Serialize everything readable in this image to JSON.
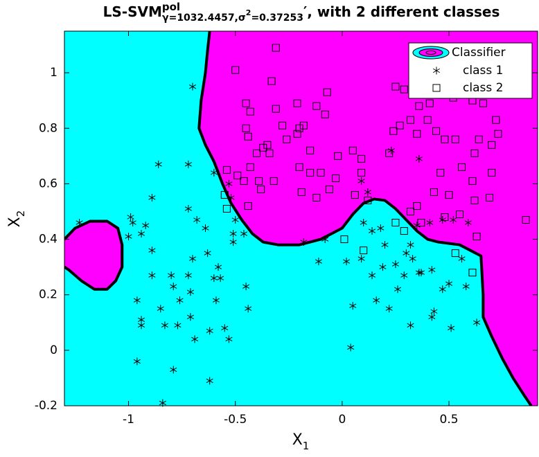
{
  "chart_data": {
    "type": "scatter",
    "title": {
      "main": "LS-SVM",
      "sup": "pol",
      "sub": "γ=1032.4457,σ",
      "sub_sup": "2",
      "sub_end": "=0.37253",
      "rest": "′, with 2 different classes"
    },
    "xlabel": {
      "text": "X",
      "sub": "1"
    },
    "ylabel": {
      "text": "X",
      "sub": "2"
    },
    "xlim": [
      -1.3,
      0.915
    ],
    "ylim": [
      -0.2,
      1.15
    ],
    "xticks": [
      -1,
      -0.5,
      0,
      0.5
    ],
    "yticks": [
      -0.2,
      0,
      0.2,
      0.4,
      0.6,
      0.8,
      1
    ],
    "legend_position": "top-right",
    "classifier": {
      "name": "Classifier",
      "colors": [
        "#00ffff",
        "#ff00ff"
      ],
      "boundaries": [
        {
          "x": [
            -0.62,
            -0.63,
            -0.64,
            -0.66,
            -0.67,
            -0.64,
            -0.6,
            -0.56,
            -0.52,
            -0.47,
            -0.42,
            -0.37,
            -0.3,
            -0.2,
            -0.1,
            0,
            0.05,
            0.1,
            0.15,
            0.2,
            0.25,
            0.3,
            0.35,
            0.4,
            0.45,
            0.55,
            0.6,
            0.65,
            0.66,
            0.66,
            0.7,
            0.75,
            0.8,
            0.85,
            0.885
          ],
          "y": [
            1.15,
            1.08,
            1.0,
            0.9,
            0.8,
            0.74,
            0.68,
            0.6,
            0.53,
            0.47,
            0.42,
            0.39,
            0.38,
            0.38,
            0.4,
            0.44,
            0.49,
            0.53,
            0.545,
            0.54,
            0.51,
            0.47,
            0.43,
            0.4,
            0.39,
            0.38,
            0.36,
            0.34,
            0.2,
            0.12,
            0.05,
            -0.03,
            -0.1,
            -0.16,
            -0.2
          ]
        },
        {
          "x": [
            -1.3,
            -1.25,
            -1.18,
            -1.1,
            -1.05,
            -1.03,
            -1.03,
            -1.06,
            -1.1,
            -1.16,
            -1.22,
            -1.28,
            -1.3
          ],
          "y": [
            0.4,
            0.44,
            0.465,
            0.465,
            0.44,
            0.38,
            0.3,
            0.25,
            0.22,
            0.22,
            0.25,
            0.29,
            0.3
          ]
        }
      ]
    },
    "series": [
      {
        "name": "class 1",
        "marker": "asterisk",
        "color": "#000000",
        "x": [
          -1.23,
          -0.99,
          -0.98,
          -1.0,
          -0.94,
          -0.92,
          -0.89,
          -0.89,
          -0.86,
          -0.96,
          -0.94,
          -0.94,
          -0.96,
          -0.89,
          -0.85,
          -0.83,
          -0.84,
          -0.8,
          -0.79,
          -0.76,
          -0.77,
          -0.79,
          -0.72,
          -0.71,
          -0.7,
          -0.71,
          -0.69,
          -0.62,
          -0.62,
          -0.72,
          -0.72,
          -0.68,
          -0.64,
          -0.63,
          -0.6,
          -0.58,
          -0.59,
          -0.57,
          -0.53,
          -0.51,
          -0.5,
          -0.51,
          -0.46,
          -0.45,
          -0.44,
          -0.55,
          -0.7,
          -0.6,
          -0.52,
          -0.53,
          -0.18,
          -0.11,
          -0.08,
          0.02,
          0.05,
          0.04,
          0.09,
          0.09,
          0.12,
          0.1,
          0.14,
          0.18,
          0.2,
          0.19,
          0.14,
          0.16,
          0.22,
          0.25,
          0.26,
          0.29,
          0.3,
          0.32,
          0.33,
          0.35,
          0.36,
          0.37,
          0.42,
          0.43,
          0.42,
          0.47,
          0.5,
          0.51,
          0.56,
          0.58,
          0.63,
          0.32,
          0.23,
          0.36,
          0.41,
          0.47,
          0.52,
          0.59
        ],
        "values": [
          0.46,
          0.48,
          0.46,
          0.41,
          0.42,
          0.45,
          0.36,
          0.55,
          0.67,
          0.18,
          0.11,
          0.09,
          -0.04,
          0.27,
          0.15,
          0.09,
          -0.19,
          0.27,
          0.23,
          0.18,
          0.09,
          -0.07,
          0.27,
          0.21,
          0.33,
          0.12,
          0.04,
          0.07,
          -0.11,
          0.67,
          0.51,
          0.47,
          0.44,
          0.35,
          0.26,
          0.3,
          0.18,
          0.26,
          0.04,
          0.39,
          0.47,
          0.42,
          0.42,
          0.23,
          0.15,
          0.08,
          0.95,
          0.64,
          0.55,
          0.6,
          0.39,
          0.32,
          0.4,
          0.32,
          0.16,
          0.01,
          0.33,
          0.61,
          0.57,
          0.46,
          0.43,
          0.44,
          0.38,
          0.3,
          0.27,
          0.18,
          0.15,
          0.31,
          0.22,
          0.27,
          0.35,
          0.38,
          0.33,
          0.45,
          0.28,
          0.28,
          0.29,
          0.14,
          0.12,
          0.22,
          0.24,
          0.08,
          0.33,
          0.23,
          0.1,
          0.09,
          0.72,
          0.69,
          0.46,
          0.47,
          0.47,
          0.46
        ]
      },
      {
        "name": "class 2",
        "marker": "square",
        "color": "#000000",
        "x": [
          -0.31,
          -0.33,
          -0.5,
          -0.45,
          -0.43,
          -0.31,
          -0.44,
          -0.45,
          -0.4,
          -0.37,
          -0.35,
          -0.34,
          -0.43,
          -0.39,
          -0.46,
          -0.49,
          -0.54,
          -0.55,
          -0.54,
          -0.44,
          -0.38,
          -0.32,
          -0.28,
          -0.26,
          -0.21,
          -0.2,
          -0.21,
          -0.18,
          -0.15,
          -0.12,
          -0.08,
          -0.07,
          -0.1,
          -0.15,
          -0.2,
          -0.19,
          -0.12,
          -0.06,
          -0.03,
          -0.02,
          0.05,
          0.09,
          0.09,
          0.06,
          0.1,
          0.01,
          0.22,
          0.24,
          0.29,
          0.32,
          0.27,
          0.35,
          0.4,
          0.44,
          0.48,
          0.53,
          0.56,
          0.62,
          0.64,
          0.7,
          0.73,
          0.61,
          0.66,
          0.72,
          0.47,
          0.52,
          0.41,
          0.36,
          0.25,
          0.61,
          0.7,
          0.62,
          0.5,
          0.46,
          0.43,
          0.35,
          0.37,
          0.48,
          0.55,
          0.63,
          0.69,
          0.86,
          0.53,
          0.29,
          0.25,
          0.32,
          0.61,
          0.12
        ],
        "values": [
          1.09,
          0.97,
          1.01,
          0.89,
          0.86,
          0.87,
          0.77,
          0.8,
          0.71,
          0.73,
          0.74,
          0.71,
          0.66,
          0.61,
          0.61,
          0.63,
          0.65,
          0.56,
          0.51,
          0.52,
          0.58,
          0.61,
          0.81,
          0.76,
          0.89,
          0.8,
          0.78,
          0.81,
          0.72,
          0.88,
          0.85,
          0.93,
          0.64,
          0.64,
          0.66,
          0.57,
          0.55,
          0.58,
          0.62,
          0.7,
          0.72,
          0.69,
          0.64,
          0.56,
          0.36,
          0.4,
          0.71,
          0.79,
          0.94,
          0.83,
          0.81,
          0.78,
          0.83,
          0.79,
          0.76,
          0.76,
          0.66,
          0.71,
          0.76,
          0.74,
          0.78,
          0.9,
          0.89,
          0.83,
          0.92,
          0.91,
          0.89,
          0.88,
          0.95,
          0.61,
          0.64,
          0.54,
          0.56,
          0.64,
          0.57,
          0.52,
          0.46,
          0.48,
          0.49,
          0.41,
          0.55,
          0.47,
          0.35,
          0.43,
          0.46,
          0.5,
          0.28,
          0.54
        ]
      }
    ]
  }
}
